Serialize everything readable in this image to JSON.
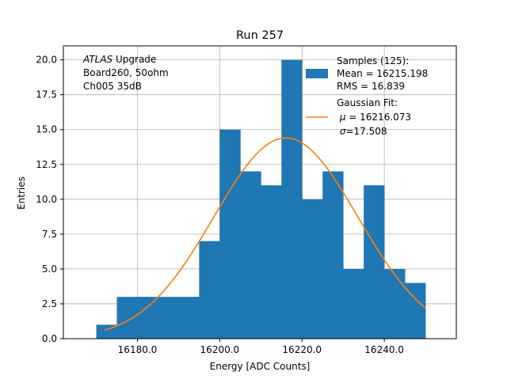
{
  "chart_data": {
    "type": "bar",
    "title": "Run 257",
    "xlabel": "Energy [ADC Counts]",
    "ylabel": "Entries",
    "xlim": [
      16162,
      16257.5
    ],
    "ylim": [
      0,
      21
    ],
    "xticks": [
      16180,
      16200,
      16220,
      16240
    ],
    "xtick_labels": [
      "16180.0",
      "16200.0",
      "16220.0",
      "16240.0"
    ],
    "yticks": [
      0,
      2.5,
      5,
      7.5,
      10,
      12.5,
      15,
      17.5,
      20
    ],
    "ytick_labels": [
      "0.0",
      "2.5",
      "5.0",
      "7.5",
      "10.0",
      "12.5",
      "15.0",
      "17.5",
      "20.0"
    ],
    "grid": true,
    "bin_edges": [
      16170,
      16175,
      16180,
      16185,
      16190,
      16195,
      16200,
      16205,
      16210,
      16215,
      16220,
      16225,
      16230,
      16235,
      16240,
      16245,
      16250
    ],
    "values": [
      1,
      3,
      3,
      3,
      3,
      7,
      15,
      12,
      11,
      20,
      10,
      12,
      5,
      11,
      5,
      4
    ],
    "annotation": {
      "italic": "ATLAS",
      "line1_rest": " Upgrade",
      "line2": " Board260, 50ohm",
      "line3": " Ch005 35dB"
    },
    "series": [
      {
        "name": "Samples (125):",
        "kind": "histogram",
        "color": "#1f77b4",
        "stats": [
          " Mean = 16215.198",
          " RMS = 16.839"
        ]
      },
      {
        "name": "Gaussian Fit:",
        "kind": "line",
        "color": "#ff7f0e",
        "stats_symbol": [
          "μ",
          "σ"
        ],
        "stats_rest": [
          " = 16216.073",
          "=17.508"
        ],
        "mu": 16216.073,
        "sigma": 17.508,
        "amplitude": 14.4,
        "x_range": [
          16172,
          16250
        ]
      }
    ],
    "legend_position": "upper right"
  }
}
